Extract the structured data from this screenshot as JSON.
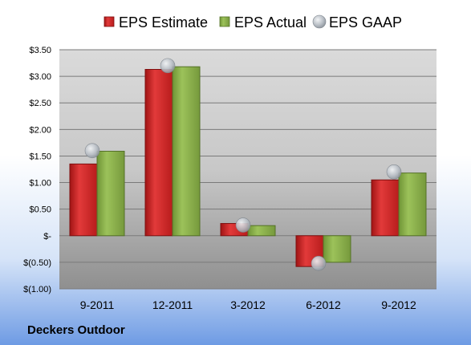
{
  "chart_data": {
    "type": "bar",
    "categories": [
      "9-2011",
      "12-2011",
      "3-2012",
      "6-2012",
      "9-2012"
    ],
    "series": [
      {
        "name": "EPS Estimate",
        "kind": "bar",
        "color": "#d42a2a",
        "values": [
          1.35,
          3.13,
          0.23,
          -0.58,
          1.05
        ]
      },
      {
        "name": "EPS Actual",
        "kind": "bar",
        "color": "#8bb04c",
        "values": [
          1.59,
          3.18,
          0.19,
          -0.5,
          1.18
        ]
      },
      {
        "name": "EPS GAAP",
        "kind": "marker",
        "color": "#b8bec6",
        "values": [
          1.6,
          3.2,
          0.2,
          -0.52,
          1.2
        ]
      }
    ],
    "ylim": [
      -1.0,
      3.5
    ],
    "yticks": [
      {
        "value": 3.5,
        "label": "$3.50"
      },
      {
        "value": 3.0,
        "label": "$3.00"
      },
      {
        "value": 2.5,
        "label": "$2.50"
      },
      {
        "value": 2.0,
        "label": "$2.00"
      },
      {
        "value": 1.5,
        "label": "$1.50"
      },
      {
        "value": 1.0,
        "label": "$1.00"
      },
      {
        "value": 0.5,
        "label": "$0.50"
      },
      {
        "value": 0.0,
        "label": "$-"
      },
      {
        "value": -0.5,
        "label": "$(0.50)"
      },
      {
        "value": -1.0,
        "label": "$(1.00)"
      }
    ],
    "grid": true,
    "legend_position": "top"
  },
  "company": "Deckers Outdoor"
}
